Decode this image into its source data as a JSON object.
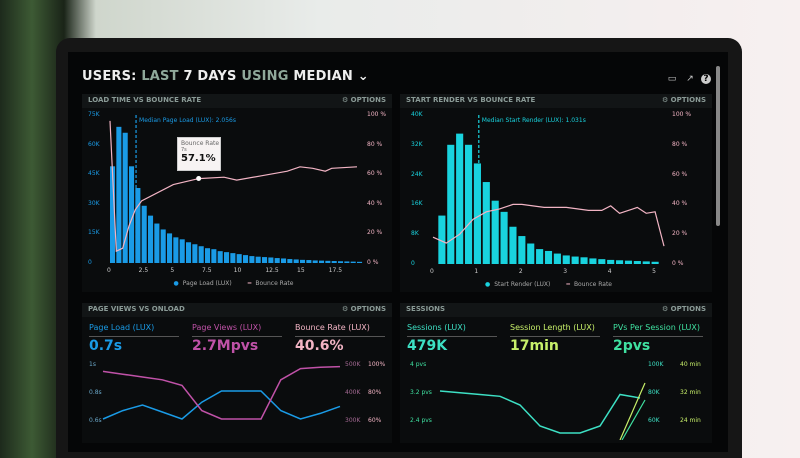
{
  "header": {
    "prefix": "USERS:",
    "range_word": "LAST",
    "range_bold": "7 DAYS",
    "using": "USING",
    "stat": "MEDIAN",
    "icons": [
      "monitor-icon",
      "share-icon",
      "help-icon"
    ]
  },
  "options_label": "⚙ OPTIONS",
  "colors": {
    "bar_blue": "#1a9be6",
    "bar_teal": "#19d3de",
    "bounce": "#f2b4c4",
    "pageviews": "#c052a8",
    "session": "#3de0c4",
    "length": "#c8f06a",
    "pvs": "#3fe0a0"
  },
  "chart_data": [
    {
      "type": "bar",
      "title": "LOAD TIME VS BOUNCE RATE",
      "yticks": [
        "75K",
        "60K",
        "45K",
        "30K",
        "15K",
        "0"
      ],
      "y2ticks": [
        "100 %",
        "80 %",
        "60 %",
        "40 %",
        "20 %",
        "0 %"
      ],
      "xticks": [
        "0",
        "2.5",
        "5",
        "7.5",
        "10",
        "12.5",
        "15",
        "17.5"
      ],
      "ylim": [
        0,
        75000
      ],
      "y2lim": [
        0,
        100
      ],
      "xlim": [
        0,
        19.5
      ],
      "annotation": "Median Page Load (LUX): 2.056s",
      "median": 2.056,
      "tooltip": {
        "label": "Bounce Rate",
        "x": "7s",
        "value": "57.1%"
      },
      "legend": [
        "Page Load (LUX)",
        "Bounce Rate"
      ],
      "bars_x_start": 0,
      "bars_x_step": 0.5,
      "bars": [
        49,
        69,
        66,
        49,
        38,
        29,
        24,
        20,
        17,
        15,
        13,
        12,
        10.5,
        9.5,
        8.5,
        7.5,
        7,
        6,
        5.5,
        5,
        4.5,
        4,
        3.5,
        3.2,
        3,
        2.8,
        2.5,
        2.3,
        2,
        1.8,
        1.6,
        1.5,
        1.3,
        1.2,
        1.1,
        1,
        0.9,
        0.8,
        0.7,
        0.6
      ],
      "bounce": [
        [
          0,
          96
        ],
        [
          0.5,
          8
        ],
        [
          1,
          10
        ],
        [
          1.5,
          25
        ],
        [
          2,
          36
        ],
        [
          2.5,
          42
        ],
        [
          5,
          53
        ],
        [
          7,
          57
        ],
        [
          9,
          58
        ],
        [
          10,
          56
        ],
        [
          12,
          59
        ],
        [
          14,
          62
        ],
        [
          15,
          65
        ],
        [
          16,
          64
        ],
        [
          17,
          62
        ],
        [
          17.5,
          64
        ],
        [
          19.5,
          65
        ]
      ]
    },
    {
      "type": "bar",
      "title": "START RENDER VS BOUNCE RATE",
      "yticks": [
        "40K",
        "32K",
        "24K",
        "16K",
        "8K",
        "0"
      ],
      "y2ticks": [
        "100 %",
        "80 %",
        "60 %",
        "40 %",
        "20 %",
        "0 %"
      ],
      "xticks": [
        "0",
        "1",
        "2",
        "3",
        "4",
        "5"
      ],
      "ylim": [
        0,
        40000
      ],
      "y2lim": [
        0,
        100
      ],
      "xlim": [
        0,
        5.2
      ],
      "annotation": "Median Start Render (LUX): 1.031s",
      "median": 1.031,
      "legend": [
        "Start Render (LUX)",
        "Bounce Rate"
      ],
      "bars_x_start": 0.2,
      "bars_x_step": 0.2,
      "bars": [
        13,
        32,
        35,
        32,
        27,
        22,
        17,
        14,
        10,
        7.5,
        5.5,
        4,
        3.5,
        2.8,
        2.3,
        2,
        1.8,
        1.5,
        1.3,
        1.1,
        1,
        0.9,
        0.8,
        0.7,
        0.6
      ],
      "bounce": [
        [
          0,
          18
        ],
        [
          0.3,
          14
        ],
        [
          0.6,
          20
        ],
        [
          0.9,
          30
        ],
        [
          1.2,
          35
        ],
        [
          1.5,
          37
        ],
        [
          1.8,
          40
        ],
        [
          2,
          40
        ],
        [
          2.5,
          38
        ],
        [
          3,
          38
        ],
        [
          3.5,
          36
        ],
        [
          3.8,
          36
        ],
        [
          4,
          39
        ],
        [
          4.2,
          34
        ],
        [
          4.5,
          37
        ],
        [
          4.6,
          38
        ],
        [
          4.8,
          34
        ],
        [
          5,
          35
        ],
        [
          5.2,
          12
        ]
      ]
    },
    {
      "type": "line",
      "title": "PAGE VIEWS VS ONLOAD",
      "metrics": [
        {
          "label": "Page Load (LUX)",
          "value": "0.7s"
        },
        {
          "label": "Page Views (LUX)",
          "value": "2.7Mpvs"
        },
        {
          "label": "Bounce Rate (LUX)",
          "value": "40.6%"
        }
      ],
      "yticks": [
        "1s",
        "0.8s",
        "0.6s"
      ],
      "y2ticks": [
        "500K",
        "400K",
        "300K"
      ],
      "y3ticks": [
        "100%",
        "80%",
        "60%"
      ],
      "series": [
        {
          "values": [
            0.6,
            0.66,
            0.7,
            0.65,
            0.6,
            0.72,
            0.8,
            0.8,
            0.8,
            0.66,
            0.6,
            0.64,
            0.69
          ]
        },
        {
          "values": [
            470,
            460,
            450,
            440,
            420,
            330,
            300,
            300,
            300,
            440,
            480,
            485,
            487
          ]
        }
      ]
    },
    {
      "type": "line",
      "title": "SESSIONS",
      "metrics": [
        {
          "label": "Sessions (LUX)",
          "value": "479K"
        },
        {
          "label": "Session Length (LUX)",
          "value": "17min"
        },
        {
          "label": "PVs Per Session (LUX)",
          "value": "2pvs"
        }
      ],
      "yticks": [
        "4 pvs",
        "3.2 pvs",
        "2.4 pvs"
      ],
      "y2ticks": [
        "100K",
        "80K",
        "60K"
      ],
      "y3ticks": [
        "40 min",
        "32 min",
        "24 min"
      ],
      "series": [
        {
          "values": [
            3.2,
            3.15,
            3.1,
            3.05,
            2.8,
            2.2,
            2.0,
            2.0,
            2.2,
            3.1,
            3.0
          ]
        }
      ]
    }
  ]
}
